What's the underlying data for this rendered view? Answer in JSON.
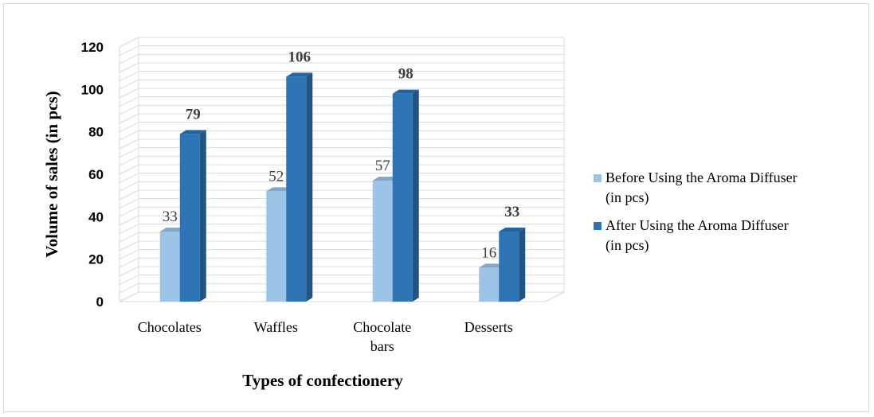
{
  "chart_data": {
    "type": "bar",
    "title": "",
    "xlabel": "Types of confectionery",
    "ylabel": "Volume  of sales (in pcs)",
    "categories": [
      [
        "Chocolates"
      ],
      [
        "Waffles"
      ],
      [
        "Chocolate",
        "bars"
      ],
      [
        "Desserts"
      ]
    ],
    "series": [
      {
        "name": [
          "Before Using the Aroma Diffuser",
          "(in pcs)"
        ],
        "values": [
          33,
          52,
          57,
          16
        ],
        "color": "#9dc3e6"
      },
      {
        "name": [
          "After Using the Aroma Diffuser",
          "(in pcs)"
        ],
        "values": [
          79,
          106,
          98,
          33
        ],
        "color": "#2e75b6"
      }
    ],
    "ylim": [
      0,
      120
    ],
    "yticks": [
      "0",
      "20",
      "40",
      "60",
      "80",
      "100",
      "120"
    ],
    "grid": true,
    "legend_position": "right",
    "style": "3d-clustered-column"
  }
}
